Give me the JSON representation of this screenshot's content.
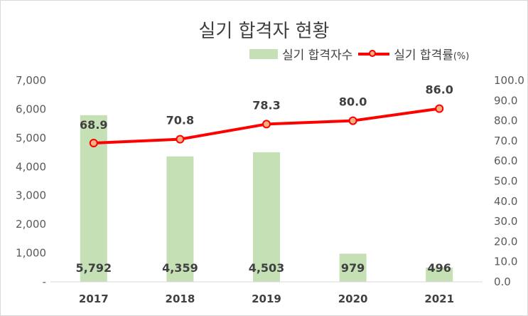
{
  "chart_data": {
    "type": "bar",
    "title": "실기 합격자 현황",
    "categories": [
      "2017",
      "2018",
      "2019",
      "2020",
      "2021"
    ],
    "series": [
      {
        "name": "실기 합격자수",
        "type": "bar",
        "axis": "left",
        "color": "#c5e0b4",
        "values": [
          5792,
          4359,
          4503,
          979,
          496
        ],
        "labels": [
          "5,792",
          "4,359",
          "4,503",
          "979",
          "496"
        ]
      },
      {
        "name": "실기 합격률",
        "name_unit": "(%)",
        "type": "line",
        "axis": "right",
        "color": "#ff0000",
        "marker_fill": "#f4b183",
        "values": [
          68.9,
          70.8,
          78.3,
          80.0,
          86.0
        ],
        "labels": [
          "68.9",
          "70.8",
          "78.3",
          "80.0",
          "86.0"
        ]
      }
    ],
    "y_left": {
      "ylim": [
        0,
        7000
      ],
      "ticks": [
        0,
        1000,
        2000,
        3000,
        4000,
        5000,
        6000,
        7000
      ],
      "tick_labels": [
        "-",
        "1,000",
        "2,000",
        "3,000",
        "4,000",
        "5,000",
        "6,000",
        "7,000"
      ]
    },
    "y_right": {
      "ylim": [
        0,
        100
      ],
      "ticks": [
        0,
        10,
        20,
        30,
        40,
        50,
        60,
        70,
        80,
        90,
        100
      ],
      "tick_labels": [
        "0.0",
        "10.0",
        "20.0",
        "30.0",
        "40.0",
        "50.0",
        "60.0",
        "70.0",
        "80.0",
        "90.0",
        "100.0"
      ]
    },
    "grid": false,
    "legend_position": "top-right"
  }
}
